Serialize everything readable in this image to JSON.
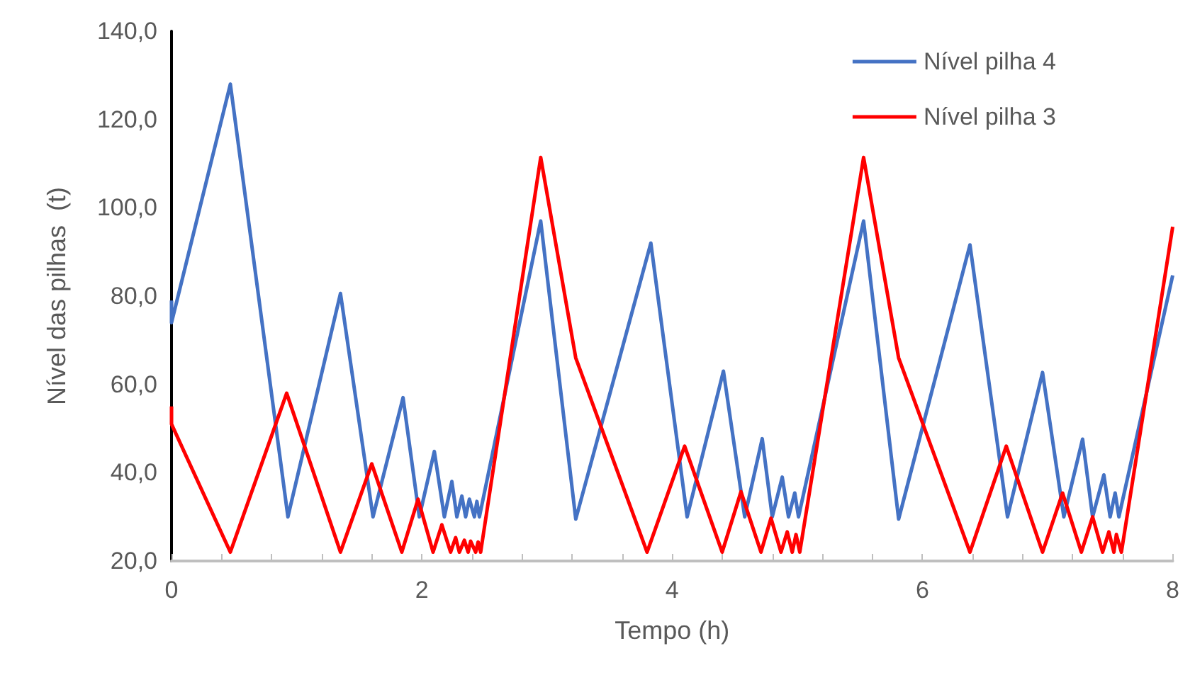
{
  "chart_data": {
    "type": "line",
    "xlabel": "Tempo (h)",
    "ylabel": "Nível das pilhas  (t)",
    "xlim": [
      0,
      8
    ],
    "ylim": [
      20,
      140
    ],
    "xticks": [
      0,
      {
        "value": 0.4,
        "label": null
      },
      {
        "value": 0.8,
        "label": null
      },
      {
        "value": 1.2,
        "label": null
      },
      {
        "value": 1.6,
        "label": null
      },
      2,
      {
        "value": 2.4,
        "label": null
      },
      {
        "value": 2.8,
        "label": null
      },
      {
        "value": 3.2,
        "label": null
      },
      {
        "value": 3.6,
        "label": null
      },
      4,
      {
        "value": 4.4,
        "label": null
      },
      {
        "value": 4.8,
        "label": null
      },
      {
        "value": 5.2,
        "label": null
      },
      {
        "value": 5.6,
        "label": null
      },
      6,
      {
        "value": 6.4,
        "label": null
      },
      {
        "value": 6.8,
        "label": null
      },
      {
        "value": 7.2,
        "label": null
      },
      {
        "value": 7.6,
        "label": null
      },
      8
    ],
    "yticks": [
      {
        "value": 20,
        "label": "20,0"
      },
      {
        "value": 40,
        "label": "40,0"
      },
      {
        "value": 60,
        "label": "60,0"
      },
      {
        "value": 80,
        "label": "80,0"
      },
      {
        "value": 100,
        "label": "100,0"
      },
      {
        "value": 120,
        "label": "120,0"
      },
      {
        "value": 140,
        "label": "140,0"
      }
    ],
    "grid": false,
    "legend": "top right",
    "marker": "none",
    "line_style": "solid",
    "series": [
      {
        "name": "Nível pilha 4",
        "color": "#4472c4",
        "x": [
          0,
          0,
          0.47,
          0.93,
          1.35,
          1.61,
          1.85,
          1.98,
          2.1,
          2.18,
          2.24,
          2.28,
          2.32,
          2.35,
          2.38,
          2.42,
          2.44,
          2.46,
          2.95,
          3.23,
          3.83,
          4.12,
          4.41,
          4.58,
          4.72,
          4.8,
          4.88,
          4.93,
          4.98,
          5.01,
          5.53,
          5.81,
          6.38,
          6.68,
          6.96,
          7.13,
          7.28,
          7.36,
          7.45,
          7.5,
          7.54,
          7.57,
          8
        ],
        "values": [
          79,
          74,
          128,
          30,
          80.6,
          30,
          57,
          30,
          44.8,
          30,
          38,
          30,
          34.7,
          30,
          34,
          30,
          33.5,
          30,
          97,
          29.5,
          92,
          30,
          63,
          30,
          47.7,
          30,
          39,
          30,
          35.4,
          30,
          97,
          29.5,
          91.6,
          30,
          62.7,
          30,
          47.6,
          30,
          39.5,
          30,
          35.4,
          30,
          84.7
        ]
      },
      {
        "name": "Nível pilha 3",
        "color": "#ff0000",
        "x": [
          0,
          0,
          0.47,
          0.92,
          1.35,
          1.6,
          1.84,
          1.97,
          2.09,
          2.16,
          2.23,
          2.27,
          2.3,
          2.34,
          2.37,
          2.39,
          2.43,
          2.45,
          2.47,
          2.95,
          3.23,
          3.8,
          4.1,
          4.4,
          4.55,
          4.71,
          4.79,
          4.87,
          4.92,
          4.96,
          4.99,
          5.02,
          5.53,
          5.81,
          6.38,
          6.67,
          6.96,
          7.12,
          7.27,
          7.36,
          7.44,
          7.49,
          7.53,
          7.55,
          7.59,
          8
        ],
        "values": [
          55,
          51,
          22,
          58,
          22,
          42,
          22,
          34,
          22,
          28.2,
          22,
          25.3,
          22,
          24.7,
          22,
          24.5,
          22,
          24.3,
          22,
          111.4,
          66,
          22,
          46,
          22,
          35.7,
          22,
          29.7,
          22,
          26.6,
          22,
          26,
          22,
          111.4,
          66,
          22,
          46,
          22,
          35.4,
          22,
          30,
          22,
          26.6,
          22,
          26,
          22,
          95.7
        ]
      }
    ]
  }
}
